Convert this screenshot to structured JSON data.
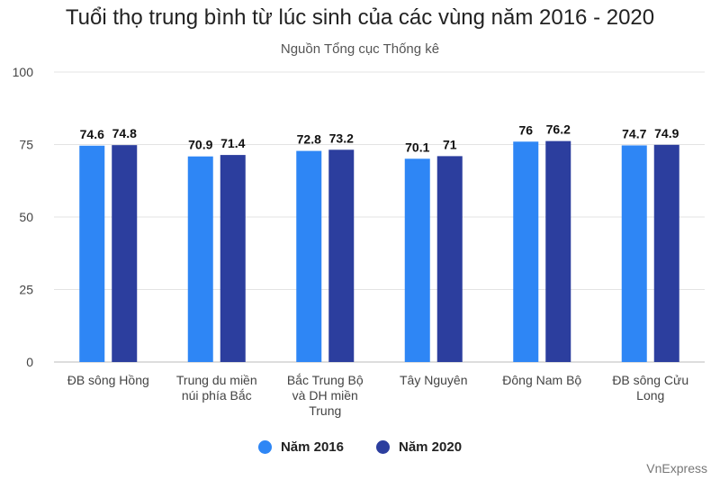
{
  "chart_data": {
    "type": "bar",
    "title": "Tuổi thọ trung bình từ lúc sinh của các vùng năm 2016 - 2020",
    "subtitle": "Nguồn Tổng cục Thống kê",
    "categories": [
      [
        "ĐB sông Hồng"
      ],
      [
        "Trung du miền",
        "núi phía Bắc"
      ],
      [
        "Bắc Trung Bộ",
        "và DH miền",
        "Trung"
      ],
      [
        "Tây Nguyên"
      ],
      [
        "Đông Nam Bộ"
      ],
      [
        "ĐB sông Cửu",
        "Long"
      ]
    ],
    "series": [
      {
        "name": "Năm 2016",
        "color": "#2e86f5",
        "values": [
          74.6,
          70.9,
          72.8,
          70.1,
          76,
          74.7
        ]
      },
      {
        "name": "Năm 2020",
        "color": "#2c3e9e",
        "values": [
          74.8,
          71.4,
          73.2,
          71,
          76.2,
          74.9
        ]
      }
    ],
    "ylim": [
      0,
      100
    ],
    "yticks": [
      0,
      25,
      50,
      75,
      100
    ],
    "grid": true,
    "legend_position": "bottom"
  },
  "source_brand": "VnExpress"
}
